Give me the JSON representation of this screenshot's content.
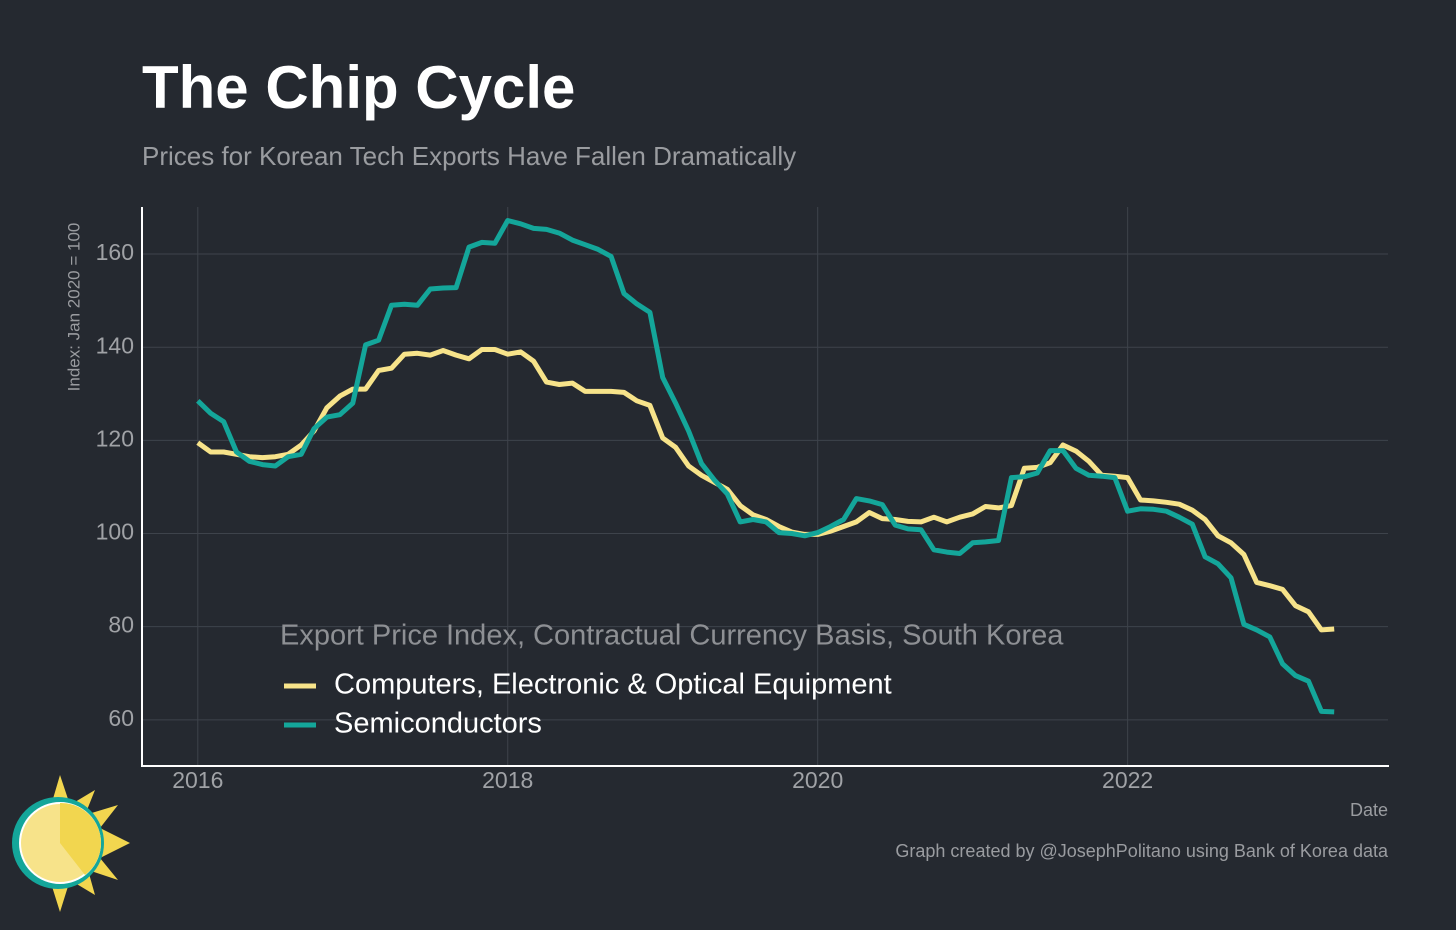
{
  "chart_data": {
    "type": "line",
    "title": "The Chip Cycle",
    "subtitle": "Prices for Korean Tech Exports Have Fallen Dramatically",
    "y_label": "Index: Jan 2020 = 100",
    "x_label": "Date",
    "legend_title": "Export Price Index, Contractual Currency Basis, South Korea",
    "caption": "Graph created by @JosephPolitano using Bank of Korea data",
    "x": [
      2016,
      2016.083,
      2016.167,
      2016.25,
      2016.333,
      2016.417,
      2016.5,
      2016.583,
      2016.667,
      2016.75,
      2016.833,
      2016.917,
      2017,
      2017.083,
      2017.167,
      2017.25,
      2017.333,
      2017.417,
      2017.5,
      2017.583,
      2017.667,
      2017.75,
      2017.833,
      2017.917,
      2018,
      2018.083,
      2018.167,
      2018.25,
      2018.333,
      2018.417,
      2018.5,
      2018.583,
      2018.667,
      2018.75,
      2018.833,
      2018.917,
      2019,
      2019.083,
      2019.167,
      2019.25,
      2019.333,
      2019.417,
      2019.5,
      2019.583,
      2019.667,
      2019.75,
      2019.833,
      2019.917,
      2020,
      2020.083,
      2020.167,
      2020.25,
      2020.333,
      2020.417,
      2020.5,
      2020.583,
      2020.667,
      2020.75,
      2020.833,
      2020.917,
      2021,
      2021.083,
      2021.167,
      2021.25,
      2021.333,
      2021.417,
      2021.5,
      2021.583,
      2021.667,
      2021.75,
      2021.833,
      2021.917,
      2022,
      2022.083,
      2022.167,
      2022.25,
      2022.333,
      2022.417,
      2022.5,
      2022.583,
      2022.667,
      2022.75,
      2022.833,
      2022.917,
      2023,
      2023.083,
      2023.167,
      2023.25,
      2023.333
    ],
    "series": [
      {
        "name": "Computers, Electronic & Optical Equipment",
        "color": "#f7e38a",
        "values": [
          119.5,
          117.5,
          117.5,
          117,
          116.5,
          116.3,
          116.5,
          117,
          119,
          122,
          127,
          129.5,
          131,
          131,
          135,
          135.5,
          138.5,
          138.7,
          138.3,
          139.3,
          138.3,
          137.5,
          139.5,
          139.5,
          138.5,
          139,
          137,
          132.5,
          132,
          132.3,
          130.5,
          130.5,
          130.5,
          130.3,
          128.5,
          127.5,
          120.5,
          118.5,
          114.5,
          112.5,
          111,
          109.5,
          106,
          104,
          103,
          101.5,
          100.3,
          99.8,
          99.8,
          100.5,
          101.5,
          102.5,
          104.5,
          103.2,
          103,
          102.6,
          102.5,
          103.5,
          102.5,
          103.5,
          104.2,
          105.8,
          105.5,
          106,
          114,
          114.2,
          115.2,
          119,
          117.7,
          115.5,
          112.5,
          112.3,
          112,
          107.2,
          107,
          106.7,
          106.3,
          105,
          103,
          99.5,
          98,
          95.5,
          89.5,
          88.8,
          88,
          84.5,
          83.2,
          79.3,
          79.5
        ]
      },
      {
        "name": "Semiconductors",
        "color": "#14a69a",
        "values": [
          128.5,
          125.8,
          124,
          117.5,
          115.5,
          114.8,
          114.5,
          116.5,
          117,
          122.5,
          125,
          125.5,
          128,
          140.5,
          141.5,
          149,
          149.2,
          149,
          152.5,
          152.7,
          152.8,
          161.5,
          162.5,
          162.3,
          167.2,
          166.5,
          165.5,
          165.3,
          164.5,
          163,
          162,
          161,
          159.5,
          151.5,
          149.3,
          147.5,
          133.5,
          128,
          122,
          115,
          111.5,
          108.5,
          102.5,
          103,
          102.5,
          100.2,
          100,
          99.5,
          100.2,
          101.5,
          103,
          107.5,
          107,
          106.2,
          101.8,
          101,
          100.8,
          96.5,
          96,
          95.7,
          98,
          98.2,
          98.5,
          112,
          112.2,
          113,
          117.8,
          117.8,
          114,
          112.5,
          112.3,
          112,
          104.8,
          105.3,
          105.2,
          104.8,
          103.5,
          102,
          95,
          93.5,
          90.5,
          80.5,
          79.3,
          77.8,
          72,
          69.5,
          68.3,
          61.8,
          61.7
        ]
      }
    ],
    "xlim": [
      2015.64,
      2023.68
    ],
    "ylim": [
      50.3,
      170.1
    ],
    "xticks": [
      2016,
      2018,
      2020,
      2022
    ],
    "yticks": [
      60,
      80,
      100,
      120,
      140,
      160
    ],
    "grid": true
  }
}
